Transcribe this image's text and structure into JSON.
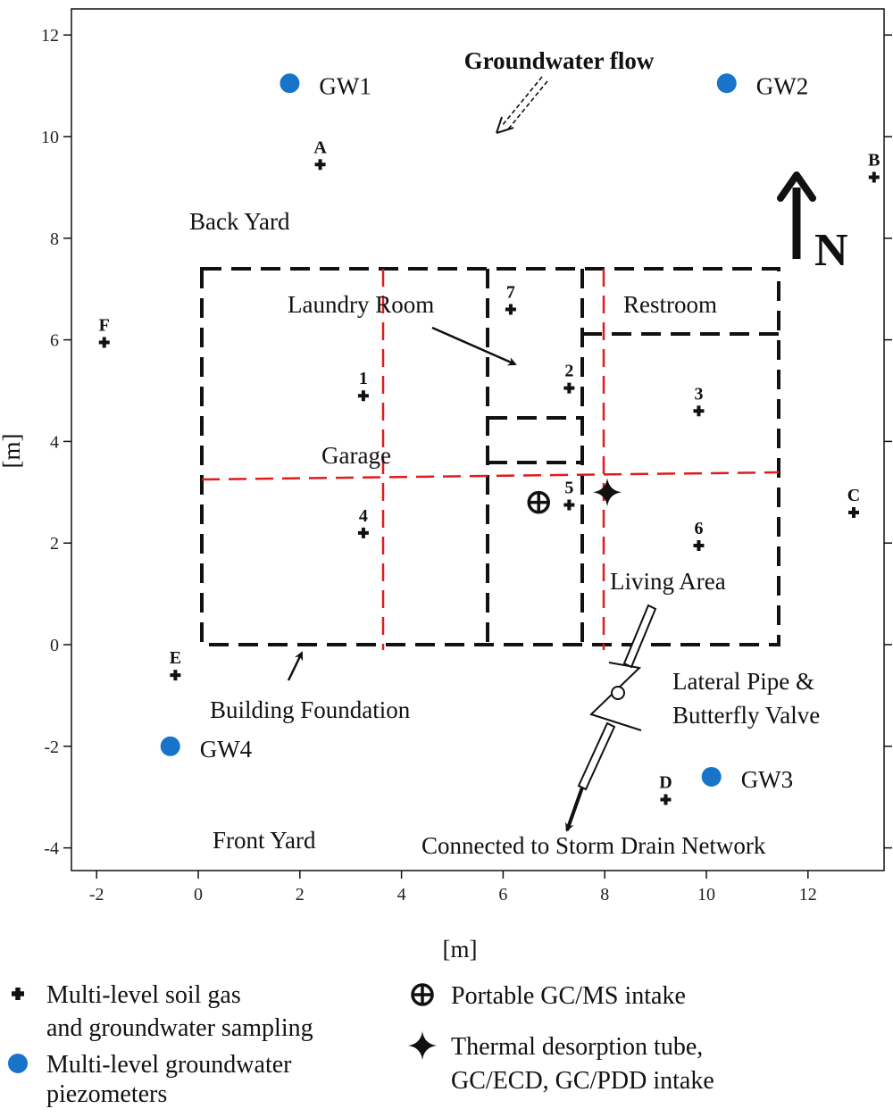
{
  "axes": {
    "xlabel": "[m]",
    "ylabel": "[m]",
    "xlim": [
      -2.5,
      13.5
    ],
    "ylim": [
      -4.5,
      12.6
    ],
    "xticks": [
      -2,
      0,
      2,
      4,
      6,
      8,
      10,
      12
    ],
    "yticks": [
      -4,
      -2,
      0,
      2,
      4,
      6,
      8,
      10,
      12
    ]
  },
  "colors": {
    "piezometer": "#1874c8",
    "foundation": "#111111",
    "grid_red": "#e01b1b"
  },
  "sampling_points": [
    {
      "label": "A",
      "x": 2.4,
      "y": 9.45
    },
    {
      "label": "B",
      "x": 13.3,
      "y": 9.2
    },
    {
      "label": "C",
      "x": 12.9,
      "y": 2.6
    },
    {
      "label": "D",
      "x": 9.2,
      "y": -3.05
    },
    {
      "label": "E",
      "x": -0.45,
      "y": -0.6
    },
    {
      "label": "F",
      "x": -1.85,
      "y": 5.95
    },
    {
      "label": "1",
      "x": 3.25,
      "y": 4.9
    },
    {
      "label": "2",
      "x": 7.3,
      "y": 5.05
    },
    {
      "label": "3",
      "x": 9.85,
      "y": 4.6
    },
    {
      "label": "4",
      "x": 3.25,
      "y": 2.2
    },
    {
      "label": "5",
      "x": 7.3,
      "y": 2.75
    },
    {
      "label": "6",
      "x": 9.85,
      "y": 1.95
    },
    {
      "label": "7",
      "x": 6.15,
      "y": 6.6
    }
  ],
  "piezometers": [
    {
      "label": "GW1",
      "x": 1.8,
      "y": 11.05
    },
    {
      "label": "GW2",
      "x": 10.4,
      "y": 11.05
    },
    {
      "label": "GW3",
      "x": 10.1,
      "y": -2.6
    },
    {
      "label": "GW4",
      "x": -0.55,
      "y": -2.0
    }
  ],
  "gcms_intake": {
    "x": 6.7,
    "y": 2.8
  },
  "thermal_intake": {
    "x": 8.05,
    "y": 3.0
  },
  "area_labels": {
    "groundwater_flow": "Groundwater flow",
    "back_yard": "Back Yard",
    "laundry_room": "Laundry Room",
    "restroom": "Restroom",
    "garage": "Garage",
    "living_area": "Living Area",
    "lateral_pipe_1": "Lateral Pipe &",
    "lateral_pipe_2": "Butterfly Valve",
    "building_foundation": "Building Foundation",
    "front_yard": "Front Yard",
    "storm_drain": "Connected to Storm Drain Network",
    "north": "N"
  },
  "legend": {
    "soil_gas_1": "Multi-level soil gas",
    "soil_gas_2": "and groundwater sampling",
    "piezometer_1": "Multi-level groundwater",
    "piezometer_2": "piezometers",
    "gcms": "Portable GC/MS intake",
    "thermal_1": "Thermal desorption tube,",
    "thermal_2": "GC/ECD, GC/PDD intake"
  }
}
